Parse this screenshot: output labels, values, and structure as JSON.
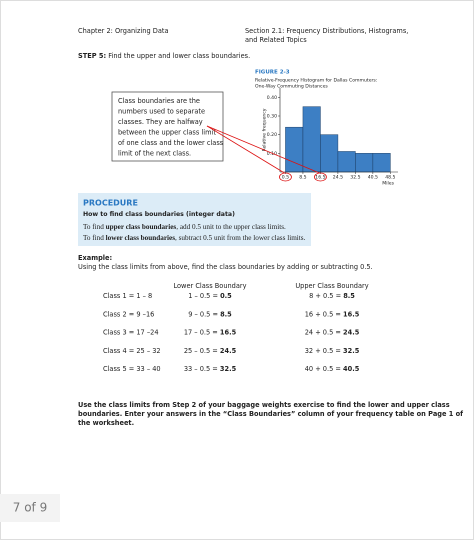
{
  "header": {
    "chapter": "Chapter 2: Organizing Data",
    "section": [
      "Section 2.1: Frequency Distributions, Histograms,",
      "and Related Topics"
    ]
  },
  "step5": {
    "label": "STEP 5:",
    "text": "Find the upper and lower class boundaries."
  },
  "callout": [
    "Class boundaries are the",
    "numbers used to separate",
    "classes. They are halfway",
    "between the upper class limit",
    "of one class and the lower class",
    "limit of the next class."
  ],
  "figure": {
    "label": "FIGURE 2-3",
    "caption": [
      "Relative-Frequency Histogram for Dallas Commuters:",
      "One-Way Commuting Distances"
    ],
    "chart": {
      "type": "histogram",
      "y_label": "Relative frequency",
      "x_label": "Miles",
      "bins": [
        0.5,
        8.5,
        16.5,
        24.5,
        32.5,
        40.5,
        48.5
      ],
      "values": [
        0.24,
        0.35,
        0.2,
        0.11,
        0.1,
        0.1
      ],
      "color": "#3d7fc4",
      "xlim": [
        -2,
        52
      ],
      "ylim": [
        0,
        0.45
      ],
      "xticks": [
        0.5,
        8.5,
        16.5,
        24.5,
        32.5,
        40.5,
        48.5
      ],
      "yticks": [
        {
          "value": 0.1,
          "label": "0.10"
        },
        {
          "value": 0.2,
          "label": "0.20"
        },
        {
          "value": 0.3,
          "label": "0.30"
        },
        {
          "value": 0.4,
          "label": "0.40"
        }
      ]
    }
  },
  "procedure": {
    "title": "PROCEDURE",
    "subtitle": "How to find class boundaries (integer data)",
    "lines": [
      [
        "To find ",
        "upper class boundaries",
        ", add 0.5 unit to the upper class limits."
      ],
      [
        "To find ",
        "lower class boundaries",
        ", subtract 0.5 unit from the lower class limits."
      ]
    ]
  },
  "example": {
    "label": "Example:",
    "text": "Using the class limits from above, find the class boundaries by adding or subtracting 0.5."
  },
  "table": {
    "headers": [
      "Lower Class Boundary",
      "Upper Class Boundary"
    ],
    "rows": [
      [
        "Class 1 = 1 – 8",
        "1 – 0.5 = ",
        "0.5",
        "8 + 0.5 = ",
        "8.5"
      ],
      [
        "Class 2 = 9 –16",
        "9 – 0.5 = ",
        "8.5",
        "16 + 0.5 = ",
        "16.5"
      ],
      [
        "Class 3 = 17 –24",
        "17 – 0.5 = ",
        "16.5",
        "24 + 0.5 = ",
        "24.5"
      ],
      [
        "Class 4 = 25 – 32",
        "25 – 0.5 = ",
        "24.5",
        "32 + 0.5 = ",
        "32.5"
      ],
      [
        "Class 5 = 33 – 40",
        "33 – 0.5 = ",
        "32.5",
        "40 + 0.5 = ",
        "40.5"
      ]
    ]
  },
  "instruction": [
    "Use the class limits from Step 2 of your baggage weights exercise to find the lower and upper class",
    "boundaries. Enter your answers in the “Class Boundaries” column of your frequency table on Page 1 of",
    "the worksheet."
  ],
  "footer": {
    "page": "7 of 9"
  }
}
